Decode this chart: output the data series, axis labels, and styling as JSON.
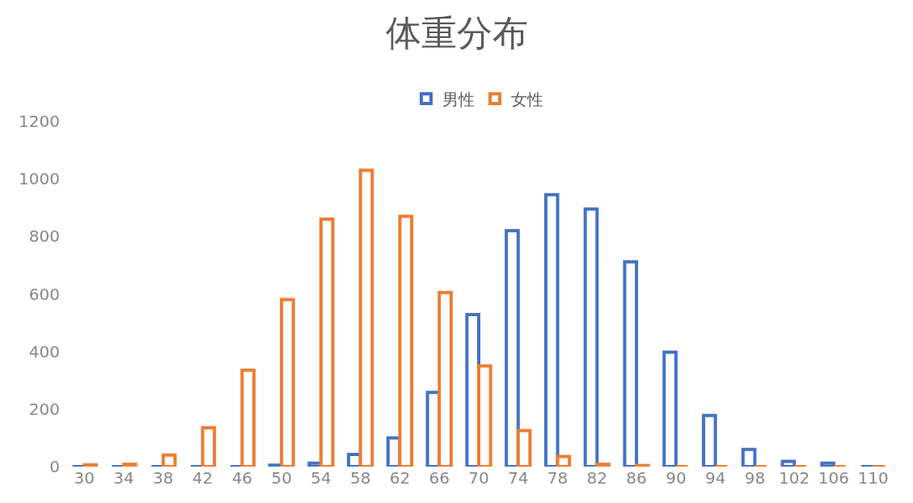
{
  "chart_data": {
    "type": "bar",
    "title": "体重分布",
    "categories": [
      "30",
      "34",
      "38",
      "42",
      "46",
      "50",
      "54",
      "58",
      "62",
      "66",
      "70",
      "74",
      "78",
      "82",
      "86",
      "90",
      "94",
      "98",
      "102",
      "106",
      "110"
    ],
    "series": [
      {
        "name": "男性",
        "color": "#4472c4",
        "values": [
          0,
          0,
          0,
          0,
          0,
          5,
          12,
          42,
          100,
          258,
          528,
          820,
          945,
          895,
          712,
          398,
          178,
          60,
          18,
          12,
          0
        ]
      },
      {
        "name": "女性",
        "color": "#ed7d31",
        "values": [
          6,
          8,
          40,
          135,
          335,
          580,
          860,
          1030,
          870,
          605,
          350,
          125,
          35,
          8,
          4,
          0,
          0,
          0,
          0,
          0,
          0
        ]
      }
    ],
    "ylim": [
      0,
      1200
    ],
    "yticks": [
      0,
      200,
      400,
      600,
      800,
      1000,
      1200
    ],
    "grid": false,
    "legend": "top"
  }
}
